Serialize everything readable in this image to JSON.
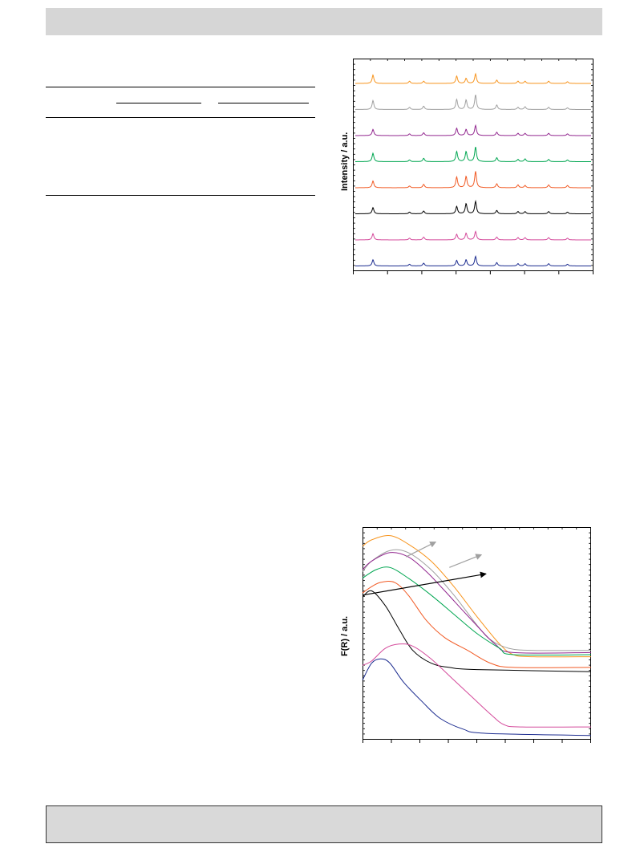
{
  "colors": {
    "orange": "#f7941d",
    "gray": "#a0a0a0",
    "purple": "#92278f",
    "green": "#00a651",
    "red": "#f15a24",
    "black": "#000000",
    "magenta": "#d44a9b",
    "navy": "#1b2b8f",
    "header_fill": "#d6d6d6",
    "footer_fill": "#d9d9d9"
  },
  "chart_data": [
    {
      "type": "line",
      "title": "",
      "xlabel": "",
      "ylabel": "Intensity / a.u.",
      "x_domain": [
        0,
        100
      ],
      "peak_positions": [
        7.5,
        23,
        29,
        43,
        47,
        51,
        60,
        69,
        72,
        82,
        90
      ],
      "series": [
        {
          "color": "orange",
          "peak_heights": [
            0.75,
            0.2,
            0.2,
            0.65,
            0.45,
            0.85,
            0.3,
            0.2,
            0.2,
            0.2,
            0.15
          ]
        },
        {
          "color": "gray",
          "peak_heights": [
            0.8,
            0.2,
            0.3,
            0.9,
            0.85,
            1.3,
            0.4,
            0.2,
            0.25,
            0.2,
            0.15
          ]
        },
        {
          "color": "purple",
          "peak_heights": [
            0.55,
            0.15,
            0.25,
            0.65,
            0.55,
            0.9,
            0.3,
            0.2,
            0.2,
            0.2,
            0.15
          ]
        },
        {
          "color": "green",
          "peak_heights": [
            0.75,
            0.15,
            0.3,
            0.9,
            0.9,
            1.3,
            0.35,
            0.2,
            0.25,
            0.2,
            0.15
          ]
        },
        {
          "color": "red",
          "peak_heights": [
            0.6,
            0.15,
            0.3,
            0.95,
            1.0,
            1.45,
            0.35,
            0.25,
            0.2,
            0.25,
            0.2
          ]
        },
        {
          "color": "black",
          "peak_heights": [
            0.55,
            0.15,
            0.25,
            0.65,
            0.9,
            1.1,
            0.3,
            0.2,
            0.2,
            0.2,
            0.15
          ]
        },
        {
          "color": "magenta",
          "peak_heights": [
            0.55,
            0.15,
            0.25,
            0.5,
            0.6,
            0.75,
            0.25,
            0.2,
            0.2,
            0.2,
            0.15
          ]
        },
        {
          "color": "navy",
          "peak_heights": [
            0.55,
            0.15,
            0.25,
            0.5,
            0.55,
            0.85,
            0.3,
            0.2,
            0.2,
            0.2,
            0.15
          ]
        }
      ]
    },
    {
      "type": "line",
      "title": "",
      "xlabel": "",
      "ylabel": "F(R) / a.u.",
      "x_domain": [
        0,
        100
      ],
      "y_domain": [
        0,
        100
      ],
      "series": [
        {
          "color": "orange",
          "points": [
            [
              0,
              91
            ],
            [
              4,
              94
            ],
            [
              12,
              96
            ],
            [
              20,
              92
            ],
            [
              30,
              84
            ],
            [
              40,
              72
            ],
            [
              50,
              58
            ],
            [
              60,
              45
            ],
            [
              66,
              40
            ],
            [
              75,
              39
            ],
            [
              100,
              39
            ]
          ]
        },
        {
          "color": "gray",
          "points": [
            [
              0,
              79
            ],
            [
              4,
              84
            ],
            [
              12,
              89
            ],
            [
              20,
              88
            ],
            [
              30,
              80
            ],
            [
              40,
              68
            ],
            [
              50,
              54
            ],
            [
              56,
              47
            ],
            [
              64,
              43
            ],
            [
              75,
              42
            ],
            [
              100,
              42
            ]
          ]
        },
        {
          "color": "purple",
          "points": [
            [
              0,
              80
            ],
            [
              4,
              84
            ],
            [
              12,
              88
            ],
            [
              20,
              86
            ],
            [
              28,
              79
            ],
            [
              36,
              70
            ],
            [
              48,
              56
            ],
            [
              58,
              45
            ],
            [
              66,
              41
            ],
            [
              100,
              41
            ]
          ]
        },
        {
          "color": "green",
          "points": [
            [
              0,
              76
            ],
            [
              6,
              80
            ],
            [
              12,
              81
            ],
            [
              20,
              76
            ],
            [
              30,
              68
            ],
            [
              40,
              59
            ],
            [
              50,
              50
            ],
            [
              60,
              43
            ],
            [
              66,
              40
            ],
            [
              100,
              40
            ]
          ]
        },
        {
          "color": "red",
          "points": [
            [
              0,
              69
            ],
            [
              4,
              72
            ],
            [
              8,
              74
            ],
            [
              14,
              74
            ],
            [
              20,
              68
            ],
            [
              28,
              56
            ],
            [
              36,
              48
            ],
            [
              46,
              42
            ],
            [
              56,
              36
            ],
            [
              66,
              34
            ],
            [
              100,
              34
            ]
          ]
        },
        {
          "color": "black",
          "points": [
            [
              0,
              67
            ],
            [
              4,
              70
            ],
            [
              10,
              63
            ],
            [
              16,
              52
            ],
            [
              22,
              42
            ],
            [
              30,
              36
            ],
            [
              38,
              34
            ],
            [
              50,
              33
            ],
            [
              100,
              32
            ]
          ]
        },
        {
          "color": "magenta",
          "points": [
            [
              0,
              35
            ],
            [
              4,
              37
            ],
            [
              10,
              43
            ],
            [
              16,
              45
            ],
            [
              22,
              44
            ],
            [
              30,
              38
            ],
            [
              40,
              28
            ],
            [
              48,
              20
            ],
            [
              56,
              12
            ],
            [
              62,
              7
            ],
            [
              70,
              6
            ],
            [
              100,
              6
            ]
          ]
        },
        {
          "color": "navy",
          "points": [
            [
              0,
              28
            ],
            [
              4,
              36
            ],
            [
              8,
              38
            ],
            [
              12,
              36
            ],
            [
              18,
              27
            ],
            [
              26,
              18
            ],
            [
              34,
              10
            ],
            [
              44,
              5
            ],
            [
              54,
              3
            ],
            [
              100,
              2
            ]
          ]
        }
      ],
      "arrows": [
        {
          "color": "gray",
          "from": [
            19,
            86
          ],
          "to": [
            32,
            93
          ]
        },
        {
          "color": "gray",
          "from": [
            38,
            81
          ],
          "to": [
            52,
            87
          ]
        },
        {
          "color": "black",
          "from": [
            0,
            68
          ],
          "to": [
            54,
            78
          ]
        }
      ]
    }
  ]
}
